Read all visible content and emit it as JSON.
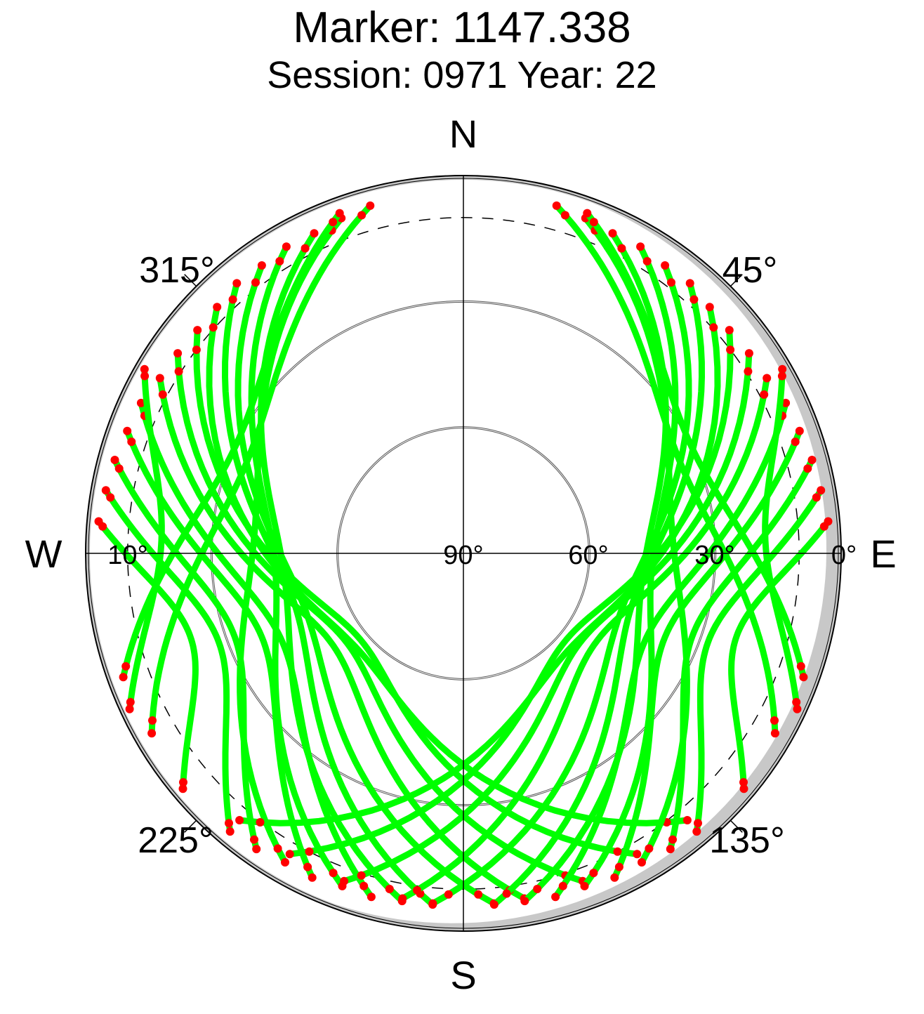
{
  "chart_data": {
    "type": "scatter",
    "title": "Marker: 1147.338",
    "subtitle": "Session: 0971 Year: 22",
    "projection": "polar sky plot (azimuth / elevation)",
    "cardinals": {
      "north": "N",
      "south": "S",
      "east": "E",
      "west": "W"
    },
    "azimuth_labels": [
      "45°",
      "135°",
      "225°",
      "315°"
    ],
    "elevation_labels": [
      "0°",
      "30°",
      "60°",
      "90°",
      "10°"
    ],
    "elevation_rings": [
      30,
      60
    ],
    "elevation_cutoff_dashed": 10,
    "colors": {
      "track": "#00ff00",
      "low_elevation_points": "#ff0000",
      "mask": "#c8c8c8",
      "axes": "#000000",
      "rings": "#555555"
    },
    "series": [
      {
        "name": "green",
        "tracks": [
          {
            "az_start": 300,
            "az_end": 170,
            "el_max": 52
          },
          {
            "az_start": 305,
            "az_end": 160,
            "el_max": 55
          },
          {
            "az_start": 310,
            "az_end": 150,
            "el_max": 58
          },
          {
            "az_start": 315,
            "az_end": 140,
            "el_max": 56
          },
          {
            "az_start": 320,
            "az_end": 185,
            "el_max": 48
          },
          {
            "az_start": 325,
            "az_end": 175,
            "el_max": 50
          },
          {
            "az_start": 330,
            "az_end": 200,
            "el_max": 45
          },
          {
            "az_start": 335,
            "az_end": 190,
            "el_max": 47
          },
          {
            "az_start": 340,
            "az_end": 210,
            "el_max": 40
          },
          {
            "az_start": 295,
            "az_end": 195,
            "el_max": 42
          },
          {
            "az_start": 290,
            "az_end": 205,
            "el_max": 38
          },
          {
            "az_start": 285,
            "az_end": 215,
            "el_max": 32
          },
          {
            "az_start": 280,
            "az_end": 220,
            "el_max": 28
          },
          {
            "az_start": 275,
            "az_end": 230,
            "el_max": 22
          },
          {
            "az_start": 60,
            "az_end": 190,
            "el_max": 52
          },
          {
            "az_start": 55,
            "az_end": 200,
            "el_max": 55
          },
          {
            "az_start": 50,
            "az_end": 210,
            "el_max": 58
          },
          {
            "az_start": 45,
            "az_end": 220,
            "el_max": 56
          },
          {
            "az_start": 40,
            "az_end": 175,
            "el_max": 48
          },
          {
            "az_start": 35,
            "az_end": 185,
            "el_max": 50
          },
          {
            "az_start": 30,
            "az_end": 160,
            "el_max": 45
          },
          {
            "az_start": 25,
            "az_end": 170,
            "el_max": 47
          },
          {
            "az_start": 20,
            "az_end": 150,
            "el_max": 40
          },
          {
            "az_start": 65,
            "az_end": 165,
            "el_max": 42
          },
          {
            "az_start": 70,
            "az_end": 155,
            "el_max": 38
          },
          {
            "az_start": 75,
            "az_end": 145,
            "el_max": 32
          },
          {
            "az_start": 80,
            "az_end": 140,
            "el_max": 28
          },
          {
            "az_start": 85,
            "az_end": 130,
            "el_max": 22
          },
          {
            "az_start": 340,
            "az_end": 250,
            "el_max": 30
          },
          {
            "az_start": 345,
            "az_end": 240,
            "el_max": 34
          },
          {
            "az_start": 20,
            "az_end": 110,
            "el_max": 30
          },
          {
            "az_start": 15,
            "az_end": 120,
            "el_max": 34
          },
          {
            "az_start": 300,
            "az_end": 245,
            "el_max": 18
          },
          {
            "az_start": 60,
            "az_end": 115,
            "el_max": 18
          }
        ]
      },
      {
        "name": "red",
        "points": "track endpoints below 10° elevation (near horizon)"
      }
    ]
  }
}
